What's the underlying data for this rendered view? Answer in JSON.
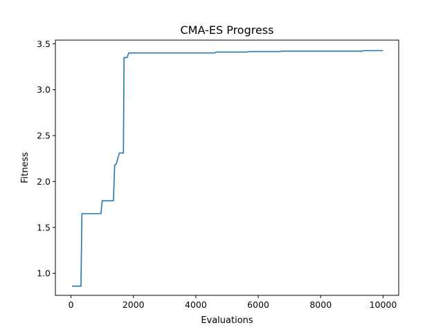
{
  "chart_data": {
    "type": "line",
    "title": "CMA-ES Progress",
    "xlabel": "Evaluations",
    "ylabel": "Fitness",
    "xlim": [
      -500,
      10500
    ],
    "ylim": [
      0.76,
      3.54
    ],
    "xticks": [
      0,
      2000,
      4000,
      6000,
      8000,
      10000
    ],
    "yticks": [
      1.0,
      1.5,
      2.0,
      2.5,
      3.0,
      3.5
    ],
    "xtick_labels": [
      "0",
      "2000",
      "4000",
      "6000",
      "8000",
      "10000"
    ],
    "ytick_labels": [
      "1.0",
      "1.5",
      "2.0",
      "2.5",
      "3.0",
      "3.5"
    ],
    "grid": false,
    "line_color": "#1f77b4",
    "series": [
      {
        "x": [
          30,
          320,
          350,
          960,
          1000,
          1360,
          1400,
          1450,
          1550,
          1600,
          1680,
          1700,
          1720,
          1800,
          1850,
          4600,
          4650,
          5650,
          5700,
          6700,
          6750,
          9300,
          9400,
          10000
        ],
        "y": [
          0.86,
          0.86,
          1.65,
          1.65,
          1.79,
          1.79,
          2.18,
          2.19,
          2.31,
          2.31,
          2.31,
          3.35,
          3.35,
          3.35,
          3.4,
          3.4,
          3.41,
          3.41,
          3.415,
          3.415,
          3.42,
          3.42,
          3.425,
          3.425
        ]
      }
    ]
  }
}
